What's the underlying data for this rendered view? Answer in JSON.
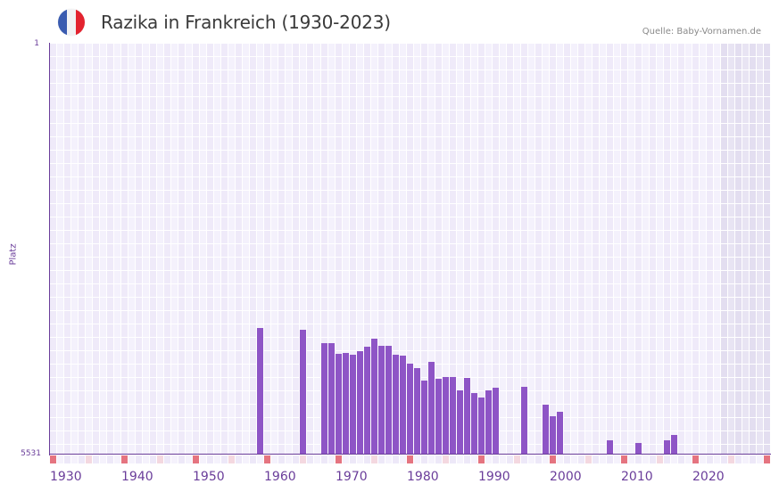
{
  "header": {
    "title": "Razika in Frankreich (1930-2023)",
    "source": "Quelle: Baby-Vornamen.de",
    "flag": {
      "country": "France",
      "icon": "france-flag-icon",
      "colors": [
        "#3a5bb0",
        "#f2f2f4",
        "#e3232f"
      ]
    }
  },
  "axes": {
    "ylabel": "Platz",
    "ytick_top": "1",
    "ytick_bottom": "5531",
    "xticks": [
      "1930",
      "1940",
      "1950",
      "1960",
      "1970",
      "1980",
      "1990",
      "2000",
      "2010",
      "2020"
    ]
  },
  "colors": {
    "bar": "#8e55c6",
    "axis": "#6a3d9a",
    "grid_a": "#efeaf9",
    "grid_b": "#f4f1fc",
    "grid_shaded_a": "#e3def0",
    "grid_shaded_b": "#e8e4f3",
    "marker_decade": "#e57480",
    "marker_half": "#f4d8e0",
    "marker_other_a": "#ede8f8",
    "marker_other_b": "#f5f2fc"
  },
  "chart_data": {
    "type": "bar",
    "title": "Razika in Frankreich (1930-2023)",
    "xlabel": "",
    "ylabel": "Platz",
    "y_inverted": true,
    "ylim": [
      1,
      5531
    ],
    "xlim": [
      1930,
      2030
    ],
    "shaded_from_year": 2024,
    "grid": true,
    "legend": null,
    "x": [
      1959,
      1965,
      1968,
      1969,
      1970,
      1971,
      1972,
      1973,
      1974,
      1975,
      1976,
      1977,
      1978,
      1979,
      1980,
      1981,
      1982,
      1983,
      1984,
      1985,
      1986,
      1987,
      1988,
      1989,
      1990,
      1991,
      1992,
      1996,
      1999,
      2000,
      2001,
      2008,
      2012,
      2016,
      2017
    ],
    "values": [
      3824,
      3848,
      4028,
      4028,
      4172,
      4160,
      4184,
      4136,
      4076,
      3968,
      4064,
      4064,
      4184,
      4196,
      4304,
      4364,
      4533,
      4280,
      4509,
      4485,
      4485,
      4665,
      4497,
      4701,
      4761,
      4665,
      4629,
      4617,
      4857,
      5013,
      4953,
      5338,
      5374,
      5338,
      5266
    ]
  }
}
